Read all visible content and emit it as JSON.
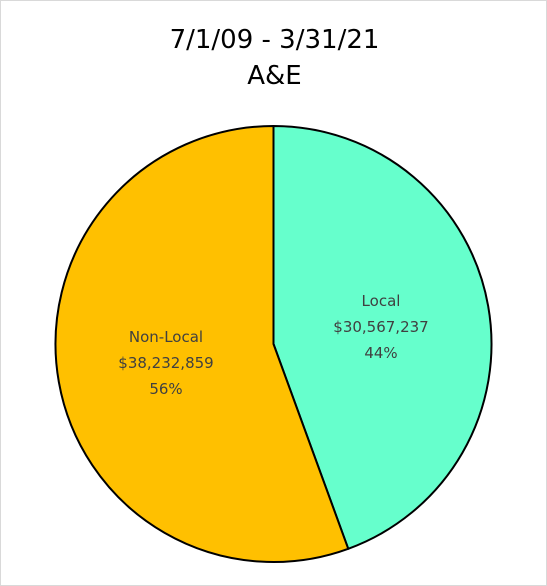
{
  "chart_data": {
    "type": "pie",
    "title": [
      "7/1/09 - 3/31/21",
      "A&E"
    ],
    "slices": [
      {
        "label": "Local",
        "value": 30567237,
        "value_text": "$30,567,237",
        "percent_text": "44%",
        "color": "#66ffcc"
      },
      {
        "label": "Non-Local",
        "value": 38232859,
        "value_text": "$38,232,859",
        "percent_text": "56%",
        "color": "#ffc000"
      }
    ],
    "start_angle_deg": 0,
    "direction": "clockwise",
    "border_color": "#000000"
  }
}
